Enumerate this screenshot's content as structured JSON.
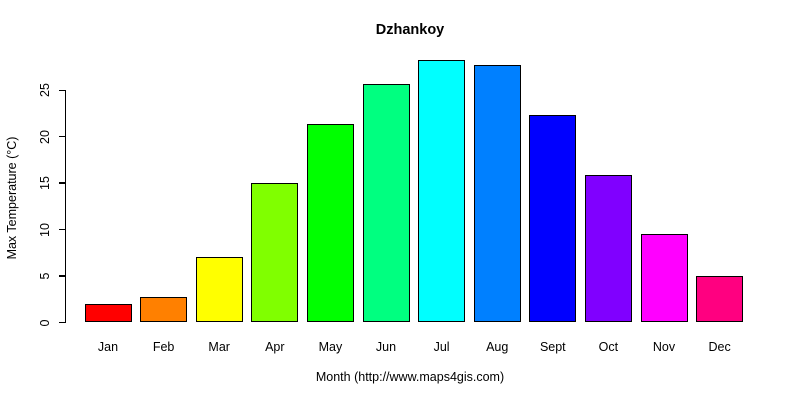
{
  "chart_data": {
    "type": "bar",
    "title": "Dzhankoy",
    "xlabel": "Month (http://www.maps4gis.com)",
    "ylabel": "Max Temperature (°C)",
    "categories": [
      "Jan",
      "Feb",
      "Mar",
      "Apr",
      "May",
      "Jun",
      "Jul",
      "Aug",
      "Sept",
      "Oct",
      "Nov",
      "Dec"
    ],
    "values": [
      2.0,
      2.7,
      7.1,
      15.0,
      21.4,
      25.7,
      28.3,
      27.7,
      22.3,
      15.9,
      9.5,
      5.0
    ],
    "bar_colors": [
      "#FF0000",
      "#FF8000",
      "#FFFF00",
      "#80FF00",
      "#00FF00",
      "#00FF80",
      "#00FFFF",
      "#0080FF",
      "#0000FF",
      "#8000FF",
      "#FF00FF",
      "#FF0080"
    ],
    "bar_border_color": "#000000",
    "yticks": [
      0,
      5,
      10,
      15,
      20,
      25
    ],
    "ylim": [
      0,
      28.3
    ],
    "grid": false,
    "legend": "none",
    "background": "#FFFFFF",
    "text_color": "#000000"
  }
}
